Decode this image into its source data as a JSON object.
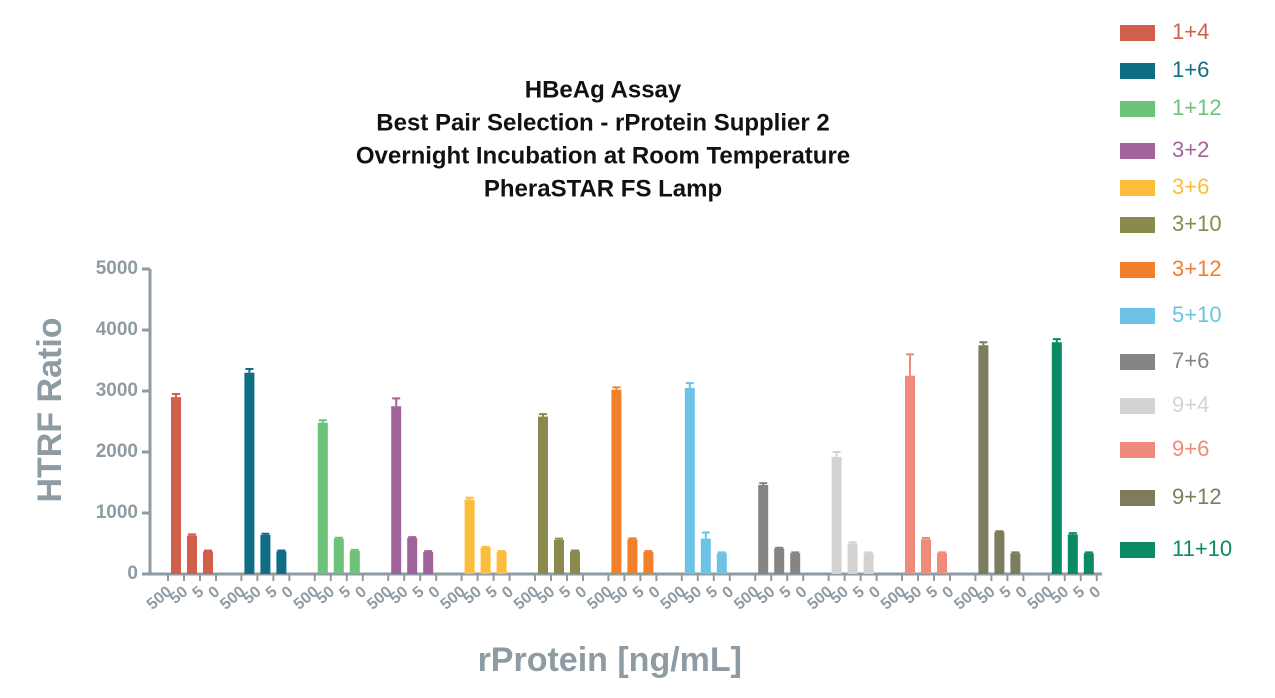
{
  "chart_data": {
    "type": "bar",
    "title": [
      "HBeAg Assay",
      "Best Pair Selection - rProtein Supplier 2",
      "Overnight Incubation at Room Temperature",
      "PheraSTAR FS Lamp"
    ],
    "x_label": "rProtein [ng/mL]",
    "y_label": "HTRF Ratio",
    "categories": [
      "500",
      "50",
      "5",
      "0"
    ],
    "ylim": [
      0,
      5000
    ],
    "yticks": [
      0,
      1000,
      2000,
      3000,
      4000,
      5000
    ],
    "series": [
      {
        "name": "1+4",
        "color": "#d0604a",
        "values": [
          2900,
          630,
          370,
          null
        ],
        "errors": [
          50,
          20,
          15,
          null
        ]
      },
      {
        "name": "1+6",
        "color": "#0f6d84",
        "values": [
          3300,
          640,
          370,
          null
        ],
        "errors": [
          60,
          20,
          15,
          null
        ]
      },
      {
        "name": "1+12",
        "color": "#6dc27a",
        "values": [
          2480,
          580,
          380,
          null
        ],
        "errors": [
          40,
          15,
          15,
          null
        ]
      },
      {
        "name": "3+2",
        "color": "#a0649a",
        "values": [
          2750,
          590,
          360,
          null
        ],
        "errors": [
          130,
          15,
          15,
          null
        ]
      },
      {
        "name": "3+6",
        "color": "#fbbd3c",
        "values": [
          1220,
          430,
          360,
          null
        ],
        "errors": [
          30,
          15,
          15,
          null
        ]
      },
      {
        "name": "3+10",
        "color": "#8a8a4c",
        "values": [
          2580,
          560,
          370,
          null
        ],
        "errors": [
          40,
          20,
          15,
          null
        ]
      },
      {
        "name": "3+12",
        "color": "#f47f2a",
        "values": [
          3020,
          570,
          360,
          null
        ],
        "errors": [
          40,
          15,
          15,
          null
        ]
      },
      {
        "name": "5+10",
        "color": "#6cc3e6",
        "values": [
          3050,
          580,
          340,
          null
        ],
        "errors": [
          80,
          100,
          15,
          null
        ]
      },
      {
        "name": "7+6",
        "color": "#858585",
        "values": [
          1460,
          420,
          340,
          null
        ],
        "errors": [
          30,
          10,
          15,
          null
        ]
      },
      {
        "name": "9+4",
        "color": "#d3d3d3",
        "values": [
          1920,
          500,
          340,
          null
        ],
        "errors": [
          80,
          20,
          15,
          null
        ]
      },
      {
        "name": "9+6",
        "color": "#f08a7a",
        "values": [
          3250,
          570,
          340,
          null
        ],
        "errors": [
          350,
          20,
          15,
          null
        ]
      },
      {
        "name": "9+12",
        "color": "#7d7d5e",
        "values": [
          3750,
          690,
          340,
          null
        ],
        "errors": [
          50,
          10,
          15,
          null
        ]
      },
      {
        "name": "11+10",
        "color": "#0a8a65",
        "values": [
          3800,
          650,
          340,
          null
        ],
        "errors": [
          50,
          20,
          15,
          null
        ]
      }
    ]
  }
}
